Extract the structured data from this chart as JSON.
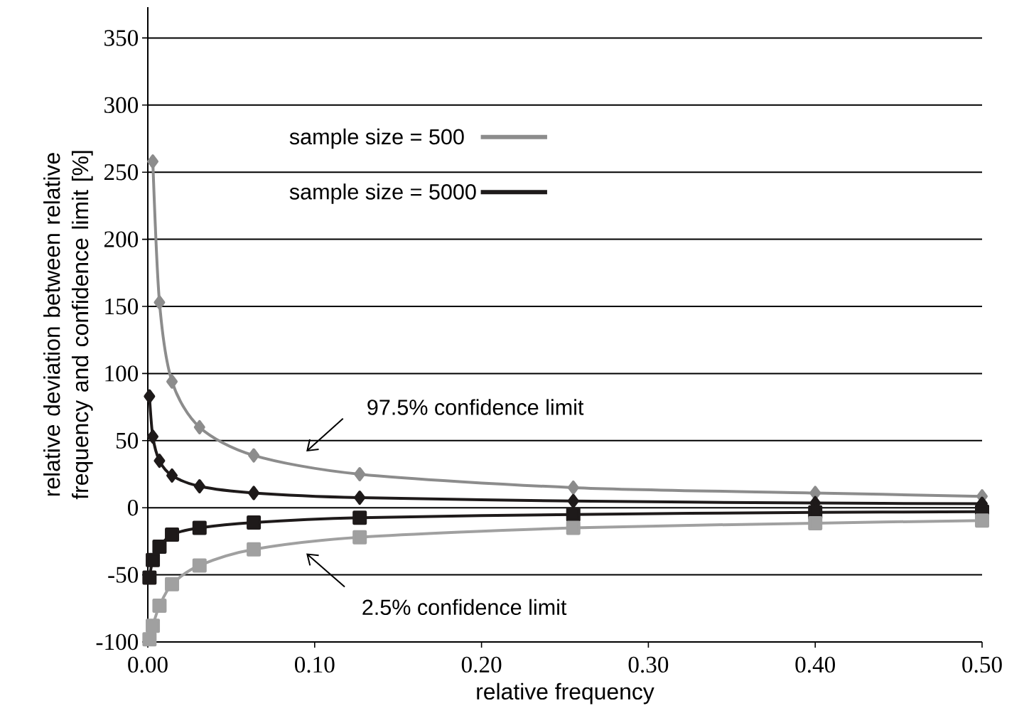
{
  "chart_data": {
    "type": "line",
    "xlabel": "relative frequency",
    "ylabel": "relative deviation between relative frequency and confidence limit [%]",
    "x": [
      0.001,
      0.003,
      0.007,
      0.0145,
      0.031,
      0.0635,
      0.127,
      0.255,
      0.4,
      0.5
    ],
    "series": [
      {
        "name": "sample size = 500",
        "color": "#8c8c8c",
        "marker": "diamond",
        "values": [
          null,
          258,
          153,
          94,
          60,
          39,
          25,
          15,
          11,
          8.5
        ]
      },
      {
        "name": "sample size = 5000",
        "color": "#1e1a1a",
        "marker": "diamond",
        "values": [
          83,
          53,
          35,
          24,
          16,
          11,
          7.5,
          5,
          3.5,
          3
        ]
      },
      {
        "color": "#1e1a1a",
        "marker": "square",
        "values": [
          -52,
          -39,
          -29,
          -20,
          -15,
          -11,
          -7.5,
          -5,
          -3.5,
          -3
        ]
      },
      {
        "color": "#a0a0a0",
        "marker": "square",
        "values": [
          -98,
          -88,
          -73,
          -57,
          -43,
          -31,
          -22,
          -15,
          -11.5,
          -9.5
        ]
      }
    ],
    "xlim": [
      0,
      0.5
    ],
    "ylim": [
      -100,
      373
    ],
    "xticks": [
      {
        "value": 0,
        "label": "0.00"
      },
      {
        "value": 0.1,
        "label": "0.10"
      },
      {
        "value": 0.2,
        "label": "0.20"
      },
      {
        "value": 0.3,
        "label": "0.30"
      },
      {
        "value": 0.4,
        "label": "0.40"
      },
      {
        "value": 0.5,
        "label": "0.50"
      }
    ],
    "yticks": [
      -100,
      -50,
      0,
      50,
      100,
      150,
      200,
      250,
      300,
      350
    ],
    "grid": "y",
    "legend": "top",
    "line_style": "solid",
    "annotations": [
      "97.5% confidence limit",
      "2.5% confidence limit"
    ]
  }
}
